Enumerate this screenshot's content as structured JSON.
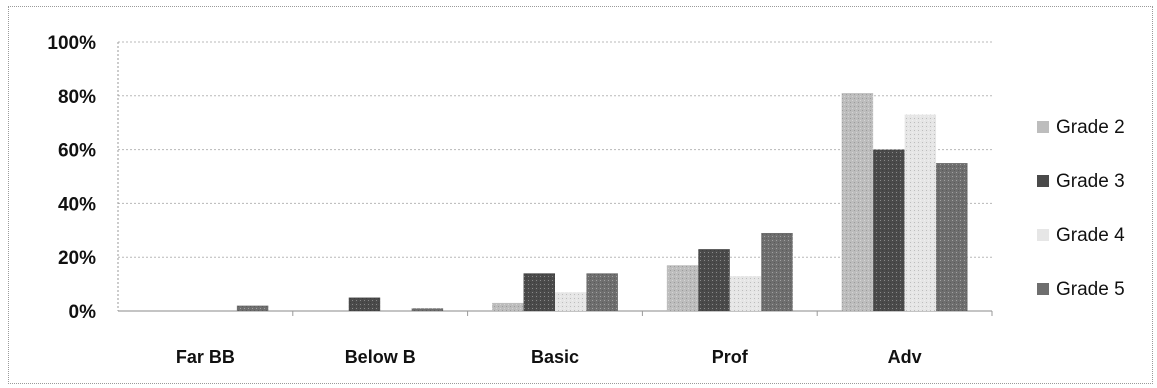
{
  "chart_data": {
    "type": "bar",
    "categories": [
      "Far BB",
      "Below B",
      "Basic",
      "Prof",
      "Adv"
    ],
    "series": [
      {
        "name": "Grade 2",
        "values": [
          0,
          0,
          3,
          17,
          81
        ],
        "color": "#bdbdbd"
      },
      {
        "name": "Grade 3",
        "values": [
          0,
          5,
          14,
          23,
          60
        ],
        "color": "#4a4a4a"
      },
      {
        "name": "Grade 4",
        "values": [
          0,
          0,
          7,
          13,
          73
        ],
        "color": "#e6e6e6"
      },
      {
        "name": "Grade 5",
        "values": [
          2,
          1,
          14,
          29,
          55
        ],
        "color": "#6e6e6e"
      }
    ],
    "y_ticks": [
      "0%",
      "20%",
      "40%",
      "60%",
      "80%",
      "100%"
    ],
    "ylim": [
      0,
      100
    ],
    "grid": true,
    "legend_position": "right"
  }
}
